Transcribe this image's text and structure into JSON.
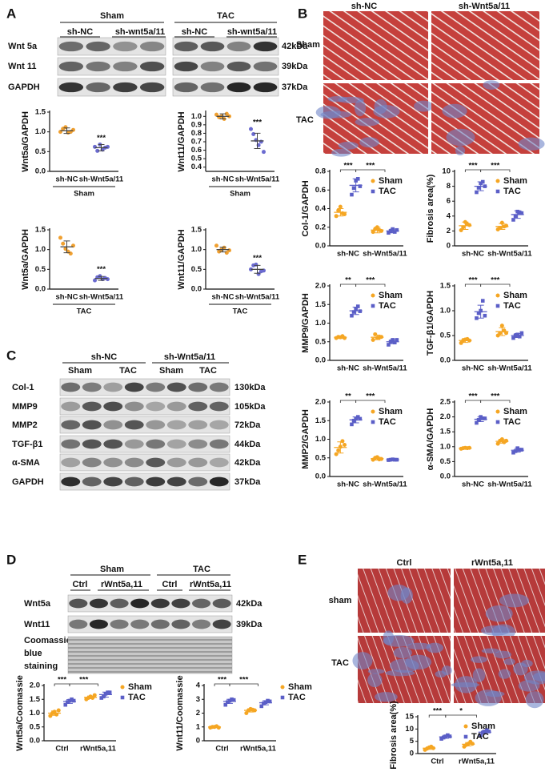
{
  "panels": {
    "letters": [
      "A",
      "B",
      "C",
      "D",
      "E"
    ],
    "A": {
      "groups": [
        "Sham",
        "TAC"
      ],
      "lanes": [
        "sh-NC",
        "sh-wnt5a/11",
        "sh-NC",
        "sh-wnt5a/11"
      ],
      "rows": [
        "Wnt 5a",
        "Wnt 11",
        "GAPDH"
      ],
      "sizes": [
        "42kDa",
        "39kDa",
        "37kDa"
      ]
    },
    "B": {
      "columns": [
        "sh-NC",
        "sh-Wnt5a/11"
      ],
      "rows": [
        "Sham",
        "TAC"
      ]
    },
    "C": {
      "groups": [
        "sh-NC",
        "sh-Wnt5a/11"
      ],
      "lanes": [
        "Sham",
        "TAC",
        "Sham",
        "TAC"
      ],
      "rows": [
        "Col-1",
        "MMP9",
        "MMP2",
        "TGF-β1",
        "α-SMA",
        "GAPDH"
      ],
      "sizes": [
        "130kDa",
        "105kDa",
        "72kDa",
        "44kDa",
        "42kDa",
        "37kDa"
      ]
    },
    "D": {
      "groups": [
        "Sham",
        "TAC"
      ],
      "lanes": [
        "Ctrl",
        "rWnt5a,11",
        "Ctrl",
        "rWnt5a,11"
      ],
      "rows": [
        "Wnt5a",
        "Wnt11"
      ],
      "stain": [
        "Coomassie",
        "blue",
        "staining"
      ],
      "sizes": [
        "42kDa",
        "39kDa"
      ]
    },
    "E": {
      "columns": [
        "Ctrl",
        "rWnt5a,11"
      ],
      "rows": [
        "sham",
        "TAC"
      ]
    }
  },
  "chart_data": [
    {
      "type": "dot",
      "ylabel": "Wnt5a/GAPDH",
      "categories": [
        "sh-NC",
        "sh-Wnt5a/11"
      ],
      "group": "Sham",
      "colors": [
        "#f0a030",
        "#6b6bd0"
      ],
      "values": [
        1.03,
        0.6
      ],
      "errors": [
        0.07,
        0.08
      ],
      "points": [
        [
          1.0,
          1.08,
          1.12,
          0.98,
          1.0,
          1.05
        ],
        [
          0.62,
          0.52,
          0.68,
          0.55,
          0.6,
          0.62
        ]
      ],
      "significance": "***",
      "ylim": [
        0,
        1.5
      ],
      "yticks": [
        {
          "value": 0,
          "label": "0.0"
        },
        0.5,
        {
          "value": 1,
          "label": "1.0"
        },
        1.5
      ]
    },
    {
      "type": "dot",
      "ylabel": "Wnt11/GAPDH",
      "categories": [
        "sh-NC",
        "sh-Wnt5a/11"
      ],
      "group": "Sham",
      "colors": [
        "#f0a030",
        "#6b6bd0"
      ],
      "values": [
        1.0,
        0.71
      ],
      "errors": [
        0.03,
        0.09
      ],
      "points": [
        [
          1.02,
          0.99,
          1.0,
          0.97,
          1.03,
          1.0
        ],
        [
          0.85,
          0.79,
          0.72,
          0.66,
          0.7,
          0.58
        ]
      ],
      "significance": "***",
      "ylim": [
        0.35,
        1.05
      ],
      "yticks": [
        0.4,
        0.5,
        0.6,
        0.7,
        0.8,
        0.9,
        {
          "value": 1,
          "label": "1.0"
        }
      ]
    },
    {
      "type": "dot",
      "ylabel": "Wnt5a/GAPDH",
      "categories": [
        "sh-NC",
        "sh-Wnt5a/11"
      ],
      "group": "TAC",
      "colors": [
        "#f0a030",
        "#6b6bd0"
      ],
      "values": [
        1.07,
        0.27
      ],
      "errors": [
        0.15,
        0.05
      ],
      "points": [
        [
          1.3,
          1.15,
          1.02,
          0.95,
          0.9,
          1.1
        ],
        [
          0.22,
          0.3,
          0.33,
          0.25,
          0.28,
          0.25
        ]
      ],
      "significance": "***",
      "ylim": [
        0,
        1.5
      ],
      "yticks": [
        {
          "value": 0,
          "label": "0.0"
        },
        0.5,
        {
          "value": 1,
          "label": "1.0"
        },
        1.5
      ]
    },
    {
      "type": "dot",
      "ylabel": "Wnt11/GAPDH",
      "categories": [
        "sh-NC",
        "sh-Wnt5a/11"
      ],
      "group": "TAC",
      "colors": [
        "#f0a030",
        "#6b6bd0"
      ],
      "values": [
        1.0,
        0.5
      ],
      "errors": [
        0.06,
        0.1
      ],
      "points": [
        [
          1.1,
          0.95,
          1.0,
          1.05,
          0.92,
          0.98
        ],
        [
          0.5,
          0.6,
          0.62,
          0.38,
          0.45,
          0.47
        ]
      ],
      "significance": "***",
      "ylim": [
        0,
        1.5
      ],
      "yticks": [
        {
          "value": 0,
          "label": "0.0"
        },
        0.5,
        {
          "value": 1,
          "label": "1.0"
        },
        1.5
      ]
    },
    {
      "type": "dot",
      "ylabel": "Col-1/GAPDH",
      "categories": [
        "sh-NC",
        "sh-Wnt5a/11"
      ],
      "legend": "upper right",
      "brackets": [
        "***",
        "***"
      ],
      "series": [
        {
          "name": "Sham",
          "color": "#f5a623",
          "marker": "circle",
          "values": [
            0.36,
            0.17
          ],
          "errors": [
            0.04,
            0.03
          ],
          "points": [
            [
              0.32,
              0.38,
              0.42,
              0.35,
              0.34
            ],
            [
              0.15,
              0.18,
              0.2,
              0.17,
              0.16
            ]
          ]
        },
        {
          "name": "TAC",
          "color": "#5b5fc7",
          "marker": "square",
          "values": [
            0.65,
            0.16
          ],
          "errors": [
            0.07,
            0.02
          ],
          "points": [
            [
              0.55,
              0.62,
              0.7,
              0.72,
              0.64
            ],
            [
              0.14,
              0.16,
              0.18,
              0.15,
              0.17
            ]
          ]
        }
      ],
      "ylim": [
        0,
        0.8
      ],
      "yticks": [
        {
          "value": 0,
          "label": "0.0"
        },
        0.2,
        0.4,
        0.6,
        0.8
      ]
    },
    {
      "type": "dot",
      "ylabel": "Fibrosis area(%)",
      "categories": [
        "sh-NC",
        "sh-Wnt5a/11"
      ],
      "legend": "upper right",
      "brackets": [
        "***",
        "***"
      ],
      "series": [
        {
          "name": "Sham",
          "color": "#f5a623",
          "marker": "circle",
          "values": [
            2.7,
            2.6
          ],
          "errors": [
            0.5,
            0.4
          ],
          "points": [
            [
              2.1,
              2.5,
              3.2,
              2.9,
              2.8
            ],
            [
              2.2,
              2.4,
              3.1,
              2.6,
              2.7
            ]
          ]
        },
        {
          "name": "TAC",
          "color": "#5b5fc7",
          "marker": "square",
          "values": [
            8.0,
            4.2
          ],
          "errors": [
            0.6,
            0.5
          ],
          "points": [
            [
              7.2,
              7.8,
              8.4,
              8.6,
              8.0
            ],
            [
              3.5,
              4.0,
              4.6,
              4.5,
              4.4
            ]
          ]
        }
      ],
      "ylim": [
        0,
        10
      ],
      "yticks": [
        0,
        2,
        4,
        6,
        8,
        10
      ]
    },
    {
      "type": "dot",
      "ylabel": "MMP9/GAPDH",
      "categories": [
        "sh-NC",
        "sh-Wnt5a/11"
      ],
      "legend": "upper right",
      "brackets": [
        "**",
        "***"
      ],
      "series": [
        {
          "name": "Sham",
          "color": "#f5a623",
          "marker": "circle",
          "values": [
            0.62,
            0.62
          ],
          "errors": [
            0.03,
            0.06
          ],
          "points": [
            [
              0.6,
              0.63,
              0.62,
              0.65,
              0.6
            ],
            [
              0.55,
              0.7,
              0.6,
              0.62,
              0.63
            ]
          ]
        },
        {
          "name": "TAC",
          "color": "#5b5fc7",
          "marker": "square",
          "values": [
            1.33,
            0.5
          ],
          "errors": [
            0.1,
            0.05
          ],
          "points": [
            [
              1.2,
              1.3,
              1.38,
              1.45,
              1.32
            ],
            [
              0.42,
              0.5,
              0.55,
              0.48,
              0.55
            ]
          ]
        }
      ],
      "ylim": [
        0,
        2
      ],
      "yticks": [
        {
          "value": 0,
          "label": "0.0"
        },
        0.5,
        {
          "value": 1,
          "label": "1.0"
        },
        1.5,
        {
          "value": 2,
          "label": "2.0"
        }
      ]
    },
    {
      "type": "dot",
      "ylabel": "TGF-β1/GAPDH",
      "categories": [
        "sh-NC",
        "sh-Wnt5a/11"
      ],
      "legend": "upper right",
      "brackets": [
        "***",
        "***"
      ],
      "series": [
        {
          "name": "Sham",
          "color": "#f5a623",
          "marker": "circle",
          "values": [
            0.4,
            0.58
          ],
          "errors": [
            0.04,
            0.08
          ],
          "points": [
            [
              0.35,
              0.4,
              0.42,
              0.43,
              0.4
            ],
            [
              0.5,
              0.55,
              0.7,
              0.6,
              0.55
            ]
          ]
        },
        {
          "name": "TAC",
          "color": "#5b5fc7",
          "marker": "square",
          "values": [
            0.98,
            0.5
          ],
          "errors": [
            0.13,
            0.04
          ],
          "points": [
            [
              0.85,
              0.95,
              1.0,
              1.2,
              0.9
            ],
            [
              0.45,
              0.5,
              0.52,
              0.48,
              0.55
            ]
          ]
        }
      ],
      "ylim": [
        0,
        1.5
      ],
      "yticks": [
        {
          "value": 0,
          "label": "0.0"
        },
        0.5,
        {
          "value": 1,
          "label": "1.0"
        },
        1.5
      ]
    },
    {
      "type": "dot",
      "ylabel": "MMP2/GAPDH",
      "categories": [
        "sh-NC",
        "sh-Wnt5a/11"
      ],
      "legend": "upper right",
      "brackets": [
        "**",
        "***"
      ],
      "series": [
        {
          "name": "Sham",
          "color": "#f5a623",
          "marker": "circle",
          "values": [
            0.78,
            0.48
          ],
          "errors": [
            0.15,
            0.04
          ],
          "points": [
            [
              0.6,
              0.7,
              0.8,
              0.95,
              0.85
            ],
            [
              0.45,
              0.5,
              0.52,
              0.46,
              0.47
            ]
          ]
        },
        {
          "name": "TAC",
          "color": "#5b5fc7",
          "marker": "square",
          "values": [
            1.52,
            0.45
          ],
          "errors": [
            0.08,
            0.01
          ],
          "points": [
            [
              1.4,
              1.5,
              1.55,
              1.6,
              1.55
            ],
            [
              0.44,
              0.45,
              0.46,
              0.45,
              0.45
            ]
          ]
        }
      ],
      "ylim": [
        0,
        2
      ],
      "yticks": [
        {
          "value": 0,
          "label": "0.0"
        },
        0.5,
        {
          "value": 1,
          "label": "1.0"
        },
        1.5,
        {
          "value": 2,
          "label": "2.0"
        }
      ]
    },
    {
      "type": "dot",
      "ylabel": "α-SMA/GAPDH",
      "categories": [
        "sh-NC",
        "sh-Wnt5a/11"
      ],
      "legend": "upper right",
      "brackets": [
        "***",
        "***"
      ],
      "series": [
        {
          "name": "Sham",
          "color": "#f5a623",
          "marker": "circle",
          "values": [
            0.95,
            1.18
          ],
          "errors": [
            0.02,
            0.06
          ],
          "points": [
            [
              0.93,
              0.95,
              0.96,
              0.95,
              0.96
            ],
            [
              1.1,
              1.2,
              1.25,
              1.15,
              1.2
            ]
          ]
        },
        {
          "name": "TAC",
          "color": "#5b5fc7",
          "marker": "square",
          "values": [
            1.92,
            0.88
          ],
          "errors": [
            0.08,
            0.06
          ],
          "points": [
            [
              1.8,
              1.9,
              2.0,
              1.95,
              1.95
            ],
            [
              0.8,
              0.85,
              0.95,
              0.9,
              0.9
            ]
          ]
        }
      ],
      "ylim": [
        0,
        2.5
      ],
      "yticks": [
        {
          "value": 0,
          "label": "0.0"
        },
        0.5,
        {
          "value": 1,
          "label": "1.0"
        },
        1.5,
        {
          "value": 2,
          "label": "2.0"
        },
        2.5
      ]
    },
    {
      "type": "dot",
      "ylabel": "Wnt5a/Coomassie",
      "categories": [
        "Ctrl",
        "rWnt5a,11"
      ],
      "legend": "right",
      "brackets": [
        "***",
        "***"
      ],
      "series": [
        {
          "name": "Sham",
          "color": "#f5a623",
          "marker": "circle",
          "values": [
            1.0,
            1.57
          ],
          "errors": [
            0.08,
            0.05
          ],
          "points": [
            [
              0.9,
              1.0,
              1.05,
              0.95,
              1.1
            ],
            [
              1.5,
              1.55,
              1.6,
              1.55,
              1.65
            ]
          ]
        },
        {
          "name": "TAC",
          "color": "#5b5fc7",
          "marker": "square",
          "values": [
            1.42,
            1.67
          ],
          "errors": [
            0.07,
            0.09
          ],
          "points": [
            [
              1.3,
              1.4,
              1.45,
              1.5,
              1.45
            ],
            [
              1.55,
              1.6,
              1.7,
              1.75,
              1.75
            ]
          ]
        }
      ],
      "ylim": [
        0,
        2
      ],
      "yticks": [
        {
          "value": 0,
          "label": "0.0"
        },
        0.5,
        {
          "value": 1,
          "label": "1.0"
        },
        1.5,
        {
          "value": 2,
          "label": "2.0"
        }
      ]
    },
    {
      "type": "dot",
      "ylabel": "Wnt11/Coomassie",
      "categories": [
        "Ctrl",
        "rWnt5a,11"
      ],
      "legend": "right",
      "brackets": [
        "***",
        "***"
      ],
      "series": [
        {
          "name": "Sham",
          "color": "#f5a623",
          "marker": "circle",
          "values": [
            1.0,
            2.2
          ],
          "errors": [
            0.05,
            0.12
          ],
          "points": [
            [
              0.95,
              1.0,
              1.0,
              1.05,
              0.95
            ],
            [
              2.0,
              2.2,
              2.3,
              2.25,
              2.2
            ]
          ]
        },
        {
          "name": "TAC",
          "color": "#5b5fc7",
          "marker": "square",
          "values": [
            2.85,
            2.75
          ],
          "errors": [
            0.15,
            0.15
          ],
          "points": [
            [
              2.6,
              2.8,
              2.9,
              3.0,
              2.95
            ],
            [
              2.5,
              2.7,
              2.8,
              2.9,
              2.85
            ]
          ]
        }
      ],
      "ylim": [
        0,
        4
      ],
      "yticks": [
        0,
        1,
        2,
        3,
        4
      ]
    },
    {
      "type": "dot",
      "ylabel": "Fibrosis area(%)",
      "categories": [
        "Ctrl",
        "rWnt5a,11"
      ],
      "legend": "upper right",
      "brackets": [
        "***",
        "*"
      ],
      "series": [
        {
          "name": "Sham",
          "color": "#f5a623",
          "marker": "circle",
          "values": [
            2.2,
            3.8
          ],
          "errors": [
            0.5,
            0.7
          ],
          "points": [
            [
              1.5,
              2,
              2.5,
              2.8,
              2.2
            ],
            [
              2.8,
              3.5,
              4.0,
              4.8,
              4.0
            ]
          ]
        },
        {
          "name": "TAC",
          "color": "#5b5fc7",
          "marker": "square",
          "values": [
            6.8,
            8.7
          ],
          "errors": [
            0.6,
            0.7
          ],
          "points": [
            [
              6.0,
              6.5,
              7.0,
              7.5,
              7.0
            ],
            [
              7.5,
              8.5,
              9.0,
              9.5,
              9.0
            ]
          ]
        }
      ],
      "ylim": [
        0,
        15
      ],
      "yticks": [
        0,
        5,
        10,
        15
      ]
    }
  ]
}
